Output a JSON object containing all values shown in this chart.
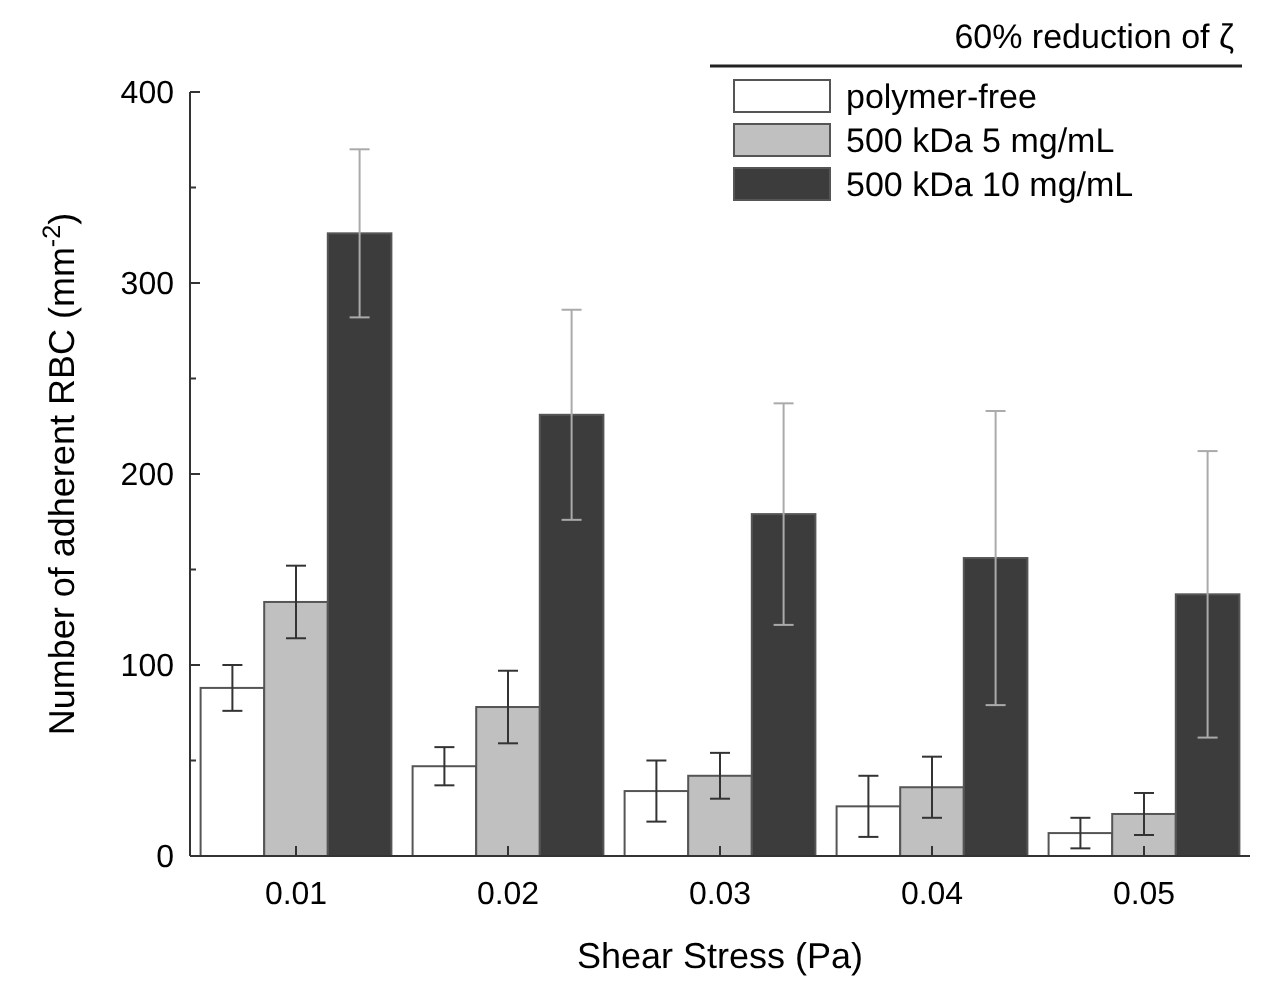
{
  "chart_data": {
    "type": "bar",
    "xlabel": "Shear Stress (Pa)",
    "ylabel": "Number of adherent RBC (mm$^{-2}$)",
    "legend_title": "60% reduction of ζ",
    "legend": "top right",
    "categories": [
      "0.01",
      "0.02",
      "0.03",
      "0.04",
      "0.05"
    ],
    "ylim": [
      0,
      400
    ],
    "yticks": [
      0,
      100,
      200,
      300,
      400
    ],
    "grid": false,
    "series": [
      {
        "name": "polymer-free",
        "color": "#ffffff",
        "values": [
          88,
          47,
          34,
          26,
          12
        ],
        "errors": [
          12,
          10,
          16,
          16,
          8
        ]
      },
      {
        "name": "500 kDa 5 mg/mL",
        "color": "#c0c0c0",
        "values": [
          133,
          78,
          42,
          36,
          22
        ],
        "errors": [
          19,
          19,
          12,
          16,
          11
        ]
      },
      {
        "name": "500 kDa 10 mg/mL",
        "color": "#3c3c3c",
        "values": [
          326,
          231,
          179,
          156,
          137
        ],
        "errors": [
          44,
          55,
          58,
          77,
          75
        ]
      }
    ]
  }
}
